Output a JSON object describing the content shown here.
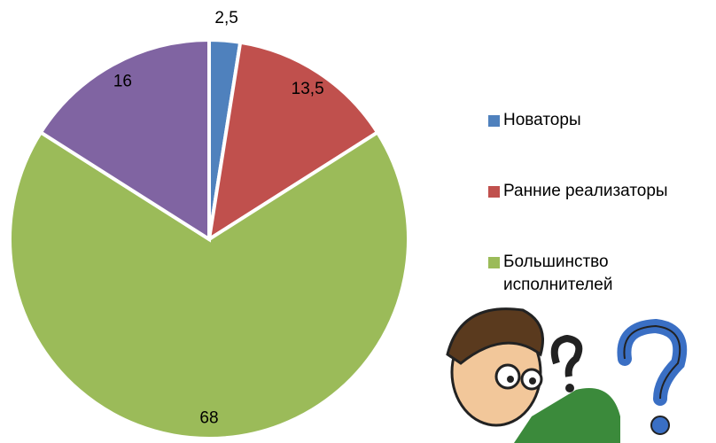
{
  "chart_data": {
    "type": "pie",
    "categories": [
      "Новаторы",
      "Ранние реализаторы",
      "Большинство исполнителей",
      null
    ],
    "values": [
      2.5,
      13.5,
      68,
      16
    ],
    "value_labels": [
      "2,5",
      "13,5",
      "68",
      "16"
    ],
    "colors": [
      "#4f81bd",
      "#c0504d",
      "#9bbb59",
      "#8064a2"
    ],
    "legend": "right"
  }
}
